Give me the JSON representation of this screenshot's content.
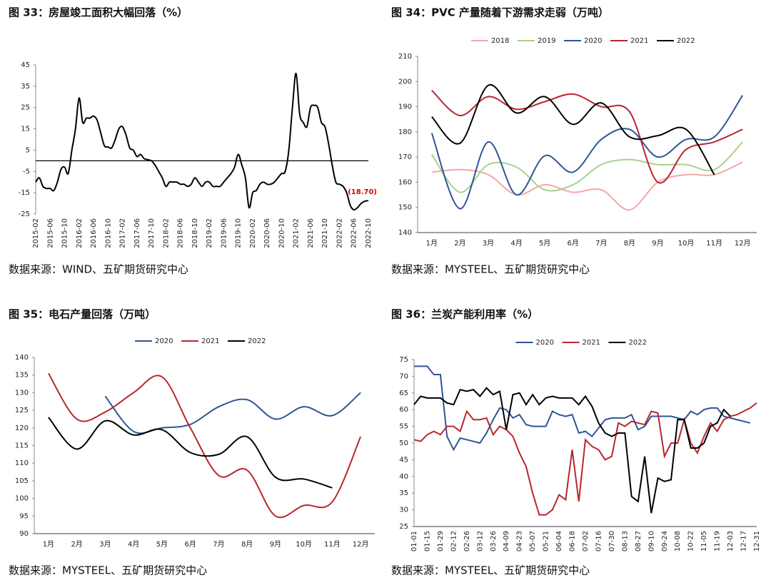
{
  "chart_data": [
    {
      "type": "line",
      "title": "图 33：房屋竣工面积大幅回落（%）",
      "source": "数据来源：WIND、五矿期货研究中心",
      "smooth": true,
      "categories": [
        "2015-02",
        null,
        null,
        null,
        "2015-06",
        null,
        null,
        null,
        "2015-10",
        null,
        null,
        null,
        "2016-02",
        null,
        null,
        null,
        "2016-06",
        null,
        null,
        null,
        "2016-10",
        null,
        null,
        null,
        "2017-02",
        null,
        null,
        null,
        "2017-06",
        null,
        null,
        null,
        "2017-10",
        null,
        null,
        null,
        "2018-02",
        null,
        null,
        null,
        "2018-06",
        null,
        null,
        null,
        "2018-10",
        null,
        null,
        null,
        "2019-02",
        null,
        null,
        null,
        "2019-06",
        null,
        null,
        null,
        "2019-10",
        null,
        null,
        null,
        "2020-02",
        null,
        null,
        null,
        "2020-06",
        null,
        null,
        null,
        "2020-10",
        null,
        null,
        null,
        "2021-02",
        null,
        null,
        null,
        "2021-06",
        null,
        null,
        null,
        "2021-10",
        null,
        null,
        null,
        "2022-02",
        null,
        null,
        null,
        "2022-06",
        null,
        null,
        null,
        "2022-10"
      ],
      "series": [
        {
          "name": "房屋竣工面积",
          "color": "#000000",
          "values": [
            -10,
            -8,
            -12,
            -13,
            -13,
            -14,
            -10,
            -4,
            -3,
            -6,
            5,
            15,
            29.5,
            18,
            20,
            20,
            21,
            19,
            13,
            7,
            6.5,
            6,
            10,
            15,
            16,
            12,
            6,
            5,
            2,
            3,
            1,
            0.5,
            0,
            -2,
            -5,
            -8,
            -12,
            -10,
            -10,
            -10,
            -11,
            -11,
            -12,
            -11,
            -8,
            -10,
            -12,
            -10,
            -10,
            -12,
            -12,
            -12,
            -10,
            -8,
            -6,
            -3,
            3,
            -2,
            -8,
            -22,
            -15,
            -14,
            -11,
            -10,
            -11,
            -11,
            -10,
            -8,
            -6,
            -5,
            5,
            25,
            41,
            22,
            18,
            16,
            25,
            26,
            25,
            18,
            16,
            8,
            -2,
            -10,
            -11,
            -12,
            -15,
            -21,
            -23,
            -22,
            -20,
            -19,
            -18.7
          ]
        }
      ],
      "annotation": "(18.70)",
      "annotation_color": "#e00000",
      "ylim": [
        -25,
        45
      ],
      "yticks": [
        -25,
        -15,
        -5,
        5,
        15,
        25,
        35,
        45
      ],
      "legend": false
    },
    {
      "type": "line",
      "title": "图 34：PVC 产量随着下游需求走弱（万吨）",
      "source": "数据来源：MYSTEEL、五矿期货研究中心",
      "smooth": true,
      "categories": [
        "1月",
        "2月",
        "3月",
        "4月",
        "5月",
        "6月",
        "7月",
        "8月",
        "9月",
        "10月",
        "11月",
        "12月"
      ],
      "series": [
        {
          "name": "2018",
          "color": "#f4a7a8",
          "values": [
            164,
            165,
            163,
            155,
            159,
            156,
            157,
            149,
            160,
            163,
            163,
            168
          ]
        },
        {
          "name": "2019",
          "color": "#a9d18e",
          "values": [
            171,
            156,
            167,
            166,
            157,
            159,
            167,
            169,
            167,
            167,
            165,
            176
          ]
        },
        {
          "name": "2020",
          "color": "#2e5597",
          "values": [
            179.5,
            149.5,
            176,
            155,
            170.5,
            164,
            177,
            181,
            170,
            177,
            178,
            194.5
          ]
        },
        {
          "name": "2021",
          "color": "#b8272e",
          "values": [
            196.5,
            186.5,
            194,
            189,
            192,
            195,
            190,
            188,
            160,
            173,
            176,
            181
          ]
        },
        {
          "name": "2022",
          "color": "#000000",
          "values": [
            186,
            175.5,
            198.5,
            187.5,
            194,
            183,
            191.5,
            178,
            178.5,
            181,
            163,
            null
          ]
        }
      ],
      "ylim": [
        140,
        210
      ],
      "yticks": [
        140,
        150,
        160,
        170,
        180,
        190,
        200,
        210
      ],
      "legend": "top"
    },
    {
      "type": "line",
      "title": "图 35：电石产量回落（万吨）",
      "source": "数据来源：MYSTEEL、五矿期货研究中心",
      "smooth": true,
      "categories": [
        "1月",
        "2月",
        "3月",
        "4月",
        "5月",
        "6月",
        "7月",
        "8月",
        "9月",
        "10月",
        "11月",
        "12月"
      ],
      "series": [
        {
          "name": "2020",
          "color": "#2e5597",
          "values": [
            null,
            null,
            129,
            119,
            120,
            121,
            126,
            128,
            122.5,
            126,
            123.5,
            130
          ]
        },
        {
          "name": "2021",
          "color": "#b8272e",
          "values": [
            135.5,
            122.5,
            124.5,
            130,
            134.5,
            120,
            106.5,
            108,
            95,
            98,
            99,
            117.5
          ]
        },
        {
          "name": "2022",
          "color": "#000000",
          "values": [
            123,
            114,
            122,
            118,
            119.5,
            113,
            112.5,
            117.5,
            106,
            105.5,
            103,
            null
          ]
        }
      ],
      "ylim": [
        90,
        140
      ],
      "yticks": [
        90,
        95,
        100,
        105,
        110,
        115,
        120,
        125,
        130,
        135,
        140
      ],
      "legend": "top"
    },
    {
      "type": "line",
      "title": "图 36：兰炭产能利用率（%）",
      "source": "数据来源：MYSTEEL、五矿期货研究中心",
      "smooth": false,
      "categories": [
        "01-01",
        null,
        "01-15",
        null,
        "01-29",
        null,
        "02-12",
        null,
        "02-26",
        null,
        "03-12",
        null,
        "03-26",
        null,
        "04-09",
        null,
        "04-23",
        null,
        "05-07",
        null,
        "05-21",
        null,
        "06-04",
        null,
        "06-18",
        null,
        "07-02",
        null,
        "07-16",
        null,
        "07-30",
        null,
        "08-13",
        null,
        "08-27",
        null,
        "09-10",
        null,
        "09-24",
        null,
        "10-08",
        null,
        "10-22",
        null,
        "11-05",
        null,
        "11-19",
        null,
        "12-03",
        null,
        "12-17",
        null,
        "12-31"
      ],
      "series": [
        {
          "name": "2020",
          "color": "#2e5597",
          "values": [
            73,
            73,
            73,
            70.5,
            70.5,
            52,
            48,
            51.5,
            51,
            50.5,
            50,
            53,
            57,
            60.5,
            60,
            57.5,
            58.5,
            55.5,
            55,
            55,
            55,
            59.5,
            58.5,
            58,
            58.5,
            53,
            53.5,
            52,
            54.5,
            57,
            57.5,
            57.5,
            57.5,
            58.5,
            54,
            55,
            58,
            58,
            58,
            58,
            57.5,
            57,
            59.5,
            58.5,
            60,
            60.5,
            60.5,
            58,
            57.5,
            57,
            56.5,
            56,
            null
          ]
        },
        {
          "name": "2021",
          "color": "#b8272e",
          "values": [
            51,
            50.5,
            52.5,
            53.5,
            52.5,
            55,
            55,
            53.5,
            59.5,
            57,
            57,
            57.5,
            52.5,
            55,
            54,
            52,
            47,
            43,
            35,
            28.5,
            28.5,
            30,
            34.5,
            33,
            48,
            32.5,
            51,
            49,
            48,
            45,
            46,
            56,
            55,
            56.5,
            56,
            55.5,
            59.5,
            59,
            46,
            50,
            50,
            57,
            50,
            47,
            52,
            56,
            53.5,
            57,
            58,
            58.5,
            59.5,
            60.5,
            62
          ]
        },
        {
          "name": "2022",
          "color": "#000000",
          "values": [
            61.5,
            64,
            63.5,
            63.5,
            63.5,
            62,
            61.5,
            66,
            65.5,
            66,
            64,
            66.5,
            64.5,
            65.5,
            54,
            64.5,
            65,
            61.5,
            64.5,
            61.5,
            63.5,
            64,
            63.5,
            63.5,
            63.5,
            61.5,
            64,
            61,
            56,
            53,
            52,
            53,
            53,
            34,
            32.5,
            46,
            29,
            39.5,
            38.5,
            39,
            57,
            57,
            48.5,
            48.5,
            50,
            55,
            56,
            60,
            58,
            null,
            null,
            null,
            null
          ]
        }
      ],
      "ylim": [
        25,
        75
      ],
      "yticks": [
        25,
        30,
        35,
        40,
        45,
        50,
        55,
        60,
        65,
        70,
        75
      ],
      "legend": "top"
    }
  ]
}
